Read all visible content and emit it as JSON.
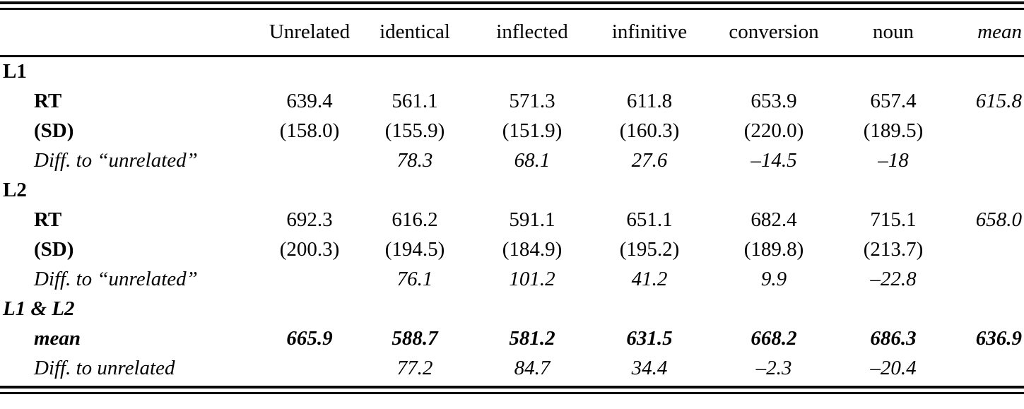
{
  "table": {
    "header": {
      "cols": [
        "Unrelated",
        "identical",
        "inflected",
        "infinitive",
        "conversion",
        "noun",
        "mean"
      ]
    },
    "rows": [
      {
        "label": "L1",
        "cells": [
          "",
          "",
          "",
          "",
          "",
          ""
        ],
        "mean": ""
      },
      {
        "label": "RT",
        "cells": [
          "639.4",
          "561.1",
          "571.3",
          "611.8",
          "653.9",
          "657.4"
        ],
        "mean": "615.8"
      },
      {
        "label": "(SD)",
        "cells": [
          "(158.0)",
          "(155.9)",
          "(151.9)",
          "(160.3)",
          "(220.0)",
          "(189.5)"
        ],
        "mean": ""
      },
      {
        "label": "Diff. to “unrelated”",
        "cells": [
          "",
          "78.3",
          "68.1",
          "27.6",
          "–14.5",
          "–18"
        ],
        "mean": ""
      },
      {
        "label": "L2",
        "cells": [
          "",
          "",
          "",
          "",
          "",
          ""
        ],
        "mean": ""
      },
      {
        "label": "RT",
        "cells": [
          "692.3",
          "616.2",
          "591.1",
          "651.1",
          "682.4",
          "715.1"
        ],
        "mean": "658.0"
      },
      {
        "label": "(SD)",
        "cells": [
          "(200.3)",
          "(194.5)",
          "(184.9)",
          "(195.2)",
          "(189.8)",
          "(213.7)"
        ],
        "mean": ""
      },
      {
        "label": "Diff. to “unrelated”",
        "cells": [
          "",
          "76.1",
          "101.2",
          "41.2",
          "9.9",
          "–22.8"
        ],
        "mean": ""
      },
      {
        "label": "L1 & L2",
        "cells": [
          "",
          "",
          "",
          "",
          "",
          ""
        ],
        "mean": ""
      },
      {
        "label": "mean",
        "cells": [
          "665.9",
          "588.7",
          "581.2",
          "631.5",
          "668.2",
          "686.3"
        ],
        "mean": "636.9"
      },
      {
        "label": "Diff. to unrelated",
        "cells": [
          "",
          "77.2",
          "84.7",
          "34.4",
          "–2.3",
          "–20.4"
        ],
        "mean": ""
      }
    ]
  }
}
